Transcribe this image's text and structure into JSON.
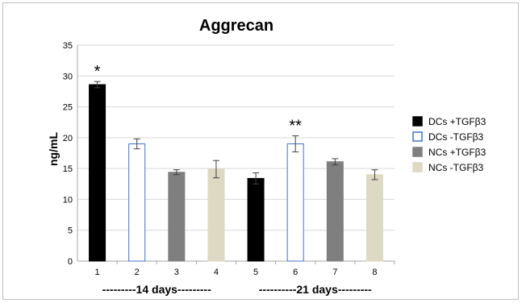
{
  "chart_data": {
    "type": "bar",
    "title": "Aggrecan",
    "ylabel": "ng/mL",
    "xlabel": "",
    "ylim": [
      0,
      35
    ],
    "yticks": [
      "0",
      "5",
      "10",
      "15",
      "20",
      "25",
      "30",
      "35"
    ],
    "grid": true,
    "legend_position": "right",
    "categories": [
      "1",
      "2",
      "3",
      "4",
      "5",
      "6",
      "7",
      "8"
    ],
    "values": [
      28.6,
      19.0,
      14.4,
      14.9,
      13.4,
      19.0,
      16.1,
      14.0
    ],
    "errors": [
      0.5,
      0.8,
      0.4,
      1.4,
      0.9,
      1.3,
      0.5,
      0.8
    ],
    "series_index": [
      0,
      1,
      2,
      3,
      0,
      1,
      2,
      3
    ],
    "series": [
      {
        "name": "DCs +TGFβ3",
        "fill": "#000000",
        "stroke": "#000000"
      },
      {
        "name": "DCs  -TGFβ3",
        "fill": "#ffffff",
        "stroke": "#4472c4"
      },
      {
        "name": "NCs +TGFβ3",
        "fill": "#7f7f7f",
        "stroke": "#7f7f7f"
      },
      {
        "name": "NCs  -TGFβ3",
        "fill": "#ddd9c3",
        "stroke": "#ddd9c3"
      }
    ],
    "annotations": [
      {
        "category": "1",
        "text": "*"
      },
      {
        "category": "6",
        "text": "**"
      }
    ],
    "group_labels": [
      {
        "text": "---------14 days---------",
        "from": "1",
        "to": "4"
      },
      {
        "text": "----------21 days---------",
        "from": "5",
        "to": "8"
      }
    ]
  }
}
